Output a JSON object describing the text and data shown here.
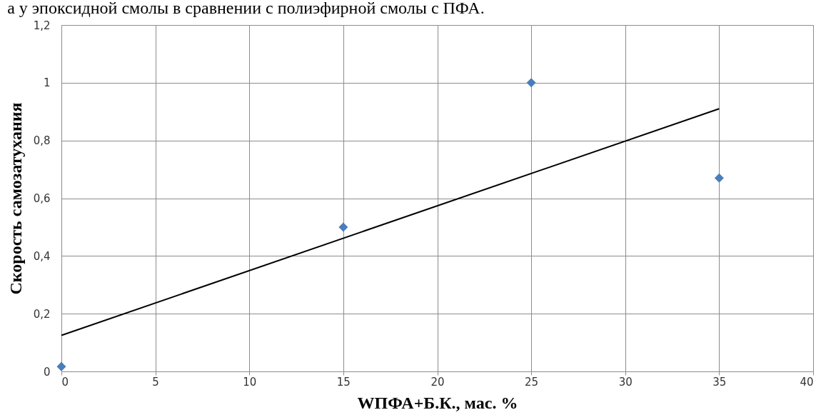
{
  "chart_data": {
    "type": "scatter",
    "xlabel": "WПФА+Б.К., мас. %",
    "ylabel": "Скорость самозатухания",
    "annotations": [
      "а у эпоксидной смолы в сравнении с полиэфирной смолы с ПФА."
    ],
    "x": [
      0,
      15,
      25,
      35
    ],
    "series": [
      {
        "color": "#4a7ebb",
        "marker": "diamond",
        "values": [
          0.017,
          0.5,
          1.0,
          0.67
        ]
      },
      {
        "type": "line",
        "color": "#000000",
        "line_style": "solid",
        "x": [
          0,
          35
        ],
        "values": [
          0.125,
          0.91
        ]
      }
    ],
    "xlim": [
      0,
      40
    ],
    "xticks": [
      0,
      5,
      10,
      15,
      20,
      25,
      30,
      35,
      40
    ],
    "ylim": [
      0,
      1.2
    ],
    "yticks": [
      0,
      {
        "value": 0.2,
        "label": "0,2"
      },
      {
        "value": 0.4,
        "label": "0,4"
      },
      {
        "value": 0.6,
        "label": "0,6"
      },
      {
        "value": 0.8,
        "label": "0,8"
      },
      1,
      {
        "value": 1.2,
        "label": "1,2"
      }
    ],
    "grid": true
  }
}
